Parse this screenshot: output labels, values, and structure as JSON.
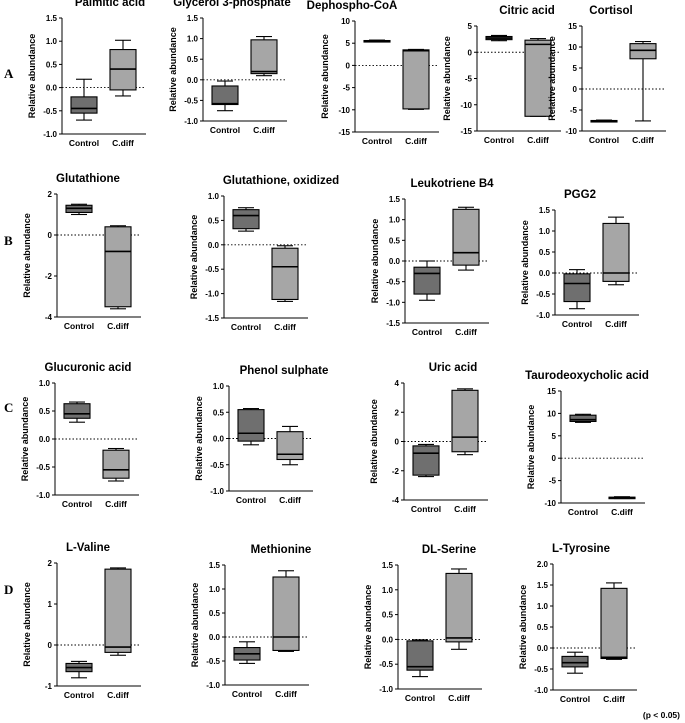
{
  "figure": {
    "ylabel": "Relative abundance",
    "footnote": "(p < 0.05)",
    "rows": [
      "A",
      "B",
      "C",
      "D"
    ]
  },
  "colors": {
    "control_box": "#6f6f6f",
    "cdiff_box": "#a6a6a6",
    "stroke": "#000000"
  },
  "chart_data": [
    {
      "type": "box",
      "row": "A",
      "title": "Palmitic acid",
      "categories": [
        "Control",
        "C.diff"
      ],
      "ylim": [
        -1.0,
        1.5
      ],
      "yticks": [
        -1.0,
        -0.5,
        0.0,
        0.5,
        1.0,
        1.5
      ],
      "tick_labels": [
        "-1.0",
        "-0.5",
        "0.0",
        "0.5",
        "1.0",
        "1.5"
      ],
      "boxes": [
        {
          "min": -0.7,
          "q1": -0.55,
          "median": -0.45,
          "q3": -0.2,
          "max": 0.18
        },
        {
          "min": -0.18,
          "q1": -0.05,
          "median": 0.4,
          "q3": 0.82,
          "max": 1.02
        }
      ]
    },
    {
      "type": "box",
      "row": "A",
      "title": "Glycerol 3-phosphate",
      "categories": [
        "Control",
        "C.diff"
      ],
      "ylim": [
        -1.0,
        1.5
      ],
      "yticks": [
        -1.0,
        -0.5,
        0.0,
        0.5,
        1.0,
        1.5
      ],
      "tick_labels": [
        "-1.0",
        "-0.5",
        "0.0",
        "0.5",
        "1.0",
        "1.5"
      ],
      "boxes": [
        {
          "min": -0.75,
          "q1": -0.6,
          "median": -0.58,
          "q3": -0.15,
          "max": -0.03
        },
        {
          "min": 0.1,
          "q1": 0.15,
          "median": 0.2,
          "q3": 0.97,
          "max": 1.05
        }
      ]
    },
    {
      "type": "box",
      "row": "A",
      "title": "Dephospho-CoA",
      "categories": [
        "Control",
        "C.diff"
      ],
      "ylim": [
        -15,
        10
      ],
      "yticks": [
        -15,
        -10,
        -5,
        0,
        5,
        10
      ],
      "tick_labels": [
        "-15",
        "-10",
        "-5",
        "0",
        "5",
        "10"
      ],
      "boxes": [
        {
          "min": 5.3,
          "q1": 5.4,
          "median": 5.5,
          "q3": 5.6,
          "max": 5.7
        },
        {
          "min": -9.9,
          "q1": -9.8,
          "median": 3.3,
          "q3": 3.5,
          "max": 3.6
        }
      ]
    },
    {
      "type": "box",
      "row": "A",
      "title": "Citric acid",
      "categories": [
        "Control",
        "C.diff"
      ],
      "ylim": [
        -15,
        5
      ],
      "yticks": [
        -15,
        -10,
        -5,
        0,
        5
      ],
      "tick_labels": [
        "-15",
        "-10",
        "-5",
        "0",
        "5"
      ],
      "boxes": [
        {
          "min": 2.2,
          "q1": 2.4,
          "median": 2.7,
          "q3": 3.0,
          "max": 3.2
        },
        {
          "min": -12.2,
          "q1": -12.2,
          "median": 1.5,
          "q3": 2.3,
          "max": 2.6
        }
      ]
    },
    {
      "type": "box",
      "row": "A",
      "title": "Cortisol",
      "categories": [
        "Control",
        "C.diff"
      ],
      "ylim": [
        -10,
        15
      ],
      "yticks": [
        -10,
        -5,
        0,
        5,
        10,
        15
      ],
      "tick_labels": [
        "-10",
        "-5",
        "0",
        "5",
        "10",
        "15"
      ],
      "boxes": [
        {
          "min": -7.8,
          "q1": -7.7,
          "median": -7.6,
          "q3": -7.5,
          "max": -7.4
        },
        {
          "min": -7.6,
          "q1": 7.2,
          "median": 9.2,
          "q3": 10.8,
          "max": 11.3
        }
      ]
    },
    {
      "type": "box",
      "row": "B",
      "title": "Glutathione",
      "categories": [
        "Control",
        "C.diff"
      ],
      "ylim": [
        -4,
        2
      ],
      "yticks": [
        -4,
        -2,
        0,
        2
      ],
      "tick_labels": [
        "-4",
        "-2",
        "0",
        "2"
      ],
      "boxes": [
        {
          "min": 1.0,
          "q1": 1.1,
          "median": 1.3,
          "q3": 1.45,
          "max": 1.5
        },
        {
          "min": -3.6,
          "q1": -3.5,
          "median": -0.8,
          "q3": 0.4,
          "max": 0.45
        }
      ]
    },
    {
      "type": "box",
      "row": "B",
      "title": "Glutathione, oxidized",
      "categories": [
        "Control",
        "C.diff"
      ],
      "ylim": [
        -1.5,
        1.0
      ],
      "yticks": [
        -1.5,
        -1.0,
        -0.5,
        0.0,
        0.5,
        1.0
      ],
      "tick_labels": [
        "-1.5",
        "-1.0",
        "-0.5",
        "0.0",
        "0.5",
        "1.0"
      ],
      "boxes": [
        {
          "min": 0.28,
          "q1": 0.33,
          "median": 0.6,
          "q3": 0.72,
          "max": 0.76
        },
        {
          "min": -1.16,
          "q1": -1.12,
          "median": -0.45,
          "q3": -0.07,
          "max": -0.02
        }
      ]
    },
    {
      "type": "box",
      "row": "B",
      "title": "Leukotriene B4",
      "categories": [
        "Control",
        "C.diff"
      ],
      "ylim": [
        -1.5,
        1.5
      ],
      "yticks": [
        -1.5,
        -1.0,
        -0.5,
        0.0,
        0.5,
        1.0,
        1.5
      ],
      "tick_labels": [
        "-1.5",
        "-1.0",
        "-0.5",
        "0.0",
        "0.5",
        "1.0",
        "1.5"
      ],
      "boxes": [
        {
          "min": -0.95,
          "q1": -0.8,
          "median": -0.3,
          "q3": -0.15,
          "max": 0.0
        },
        {
          "min": -0.22,
          "q1": -0.1,
          "median": 0.2,
          "q3": 1.25,
          "max": 1.3
        }
      ]
    },
    {
      "type": "box",
      "row": "B",
      "title": "PGG2",
      "categories": [
        "Control",
        "C.diff"
      ],
      "ylim": [
        -1.0,
        1.5
      ],
      "yticks": [
        -1.0,
        -0.5,
        0.0,
        0.5,
        1.0,
        1.5
      ],
      "tick_labels": [
        "-1.0",
        "-0.5",
        "0.0",
        "0.5",
        "1.0",
        "1.5"
      ],
      "boxes": [
        {
          "min": -0.85,
          "q1": -0.68,
          "median": -0.25,
          "q3": -0.02,
          "max": 0.08
        },
        {
          "min": -0.28,
          "q1": -0.2,
          "median": 0.0,
          "q3": 1.18,
          "max": 1.33
        }
      ]
    },
    {
      "type": "box",
      "row": "C",
      "title": "Glucuronic acid",
      "categories": [
        "Control",
        "C.diff"
      ],
      "ylim": [
        -1.0,
        1.0
      ],
      "yticks": [
        -1.0,
        -0.5,
        0.0,
        0.5,
        1.0
      ],
      "tick_labels": [
        "-1.0",
        "-0.5",
        "0.0",
        "0.5",
        "1.0"
      ],
      "boxes": [
        {
          "min": 0.3,
          "q1": 0.37,
          "median": 0.45,
          "q3": 0.63,
          "max": 0.66
        },
        {
          "min": -0.75,
          "q1": -0.7,
          "median": -0.55,
          "q3": -0.2,
          "max": -0.17
        }
      ]
    },
    {
      "type": "box",
      "row": "C",
      "title": "Phenol sulphate",
      "categories": [
        "Control",
        "C.diff"
      ],
      "ylim": [
        -1.0,
        1.0
      ],
      "yticks": [
        -1.0,
        -0.5,
        0.0,
        0.5,
        1.0
      ],
      "tick_labels": [
        "-1.0",
        "-0.5",
        "0.0",
        "0.5",
        "1.0"
      ],
      "boxes": [
        {
          "min": -0.12,
          "q1": -0.05,
          "median": 0.1,
          "q3": 0.55,
          "max": 0.57
        },
        {
          "min": -0.5,
          "q1": -0.4,
          "median": -0.3,
          "q3": 0.13,
          "max": 0.23
        }
      ]
    },
    {
      "type": "box",
      "row": "C",
      "title": "Uric acid",
      "categories": [
        "Control",
        "C.diff"
      ],
      "ylim": [
        -4,
        4
      ],
      "yticks": [
        -4,
        -2,
        0,
        2,
        4
      ],
      "tick_labels": [
        "-4",
        "-2",
        "0",
        "2",
        "4"
      ],
      "boxes": [
        {
          "min": -2.4,
          "q1": -2.3,
          "median": -0.8,
          "q3": -0.3,
          "max": -0.2
        },
        {
          "min": -0.9,
          "q1": -0.7,
          "median": 0.3,
          "q3": 3.5,
          "max": 3.6
        }
      ]
    },
    {
      "type": "box",
      "row": "C",
      "title": "Taurodeoxycholic acid",
      "categories": [
        "Control",
        "C.diff"
      ],
      "ylim": [
        -10,
        15
      ],
      "yticks": [
        -10,
        -5,
        0,
        5,
        10,
        15
      ],
      "tick_labels": [
        "-10",
        "-5",
        "0",
        "5",
        "10",
        "15"
      ],
      "boxes": [
        {
          "min": 8.0,
          "q1": 8.2,
          "median": 8.6,
          "q3": 9.6,
          "max": 9.8
        },
        {
          "min": -9.0,
          "q1": -8.9,
          "median": -8.8,
          "q3": -8.7,
          "max": -8.6
        }
      ]
    },
    {
      "type": "box",
      "row": "D",
      "title": "L-Valine",
      "categories": [
        "Control",
        "C.diff"
      ],
      "ylim": [
        -1,
        2
      ],
      "yticks": [
        -1,
        0,
        1,
        2
      ],
      "tick_labels": [
        "-1",
        "0",
        "1",
        "2"
      ],
      "boxes": [
        {
          "min": -0.8,
          "q1": -0.65,
          "median": -0.55,
          "q3": -0.45,
          "max": -0.4
        },
        {
          "min": -0.25,
          "q1": -0.18,
          "median": -0.05,
          "q3": 1.85,
          "max": 1.88
        }
      ]
    },
    {
      "type": "box",
      "row": "D",
      "title": "Methionine",
      "categories": [
        "Control",
        "C.diff"
      ],
      "ylim": [
        -1.0,
        1.5
      ],
      "yticks": [
        -1.0,
        -0.5,
        0.0,
        0.5,
        1.0,
        1.5
      ],
      "tick_labels": [
        "-1.0",
        "-0.5",
        "0.0",
        "0.5",
        "1.0",
        "1.5"
      ],
      "boxes": [
        {
          "min": -0.55,
          "q1": -0.48,
          "median": -0.35,
          "q3": -0.22,
          "max": -0.1
        },
        {
          "min": -0.3,
          "q1": -0.28,
          "median": 0.0,
          "q3": 1.25,
          "max": 1.38
        }
      ]
    },
    {
      "type": "box",
      "row": "D",
      "title": "DL-Serine",
      "categories": [
        "Control",
        "C.diff"
      ],
      "ylim": [
        -1.0,
        1.5
      ],
      "yticks": [
        -1.0,
        -0.5,
        0.0,
        0.5,
        1.0,
        1.5
      ],
      "tick_labels": [
        "-1.0",
        "-0.5",
        "0.0",
        "0.5",
        "1.0",
        "1.5"
      ],
      "boxes": [
        {
          "min": -0.75,
          "q1": -0.62,
          "median": -0.55,
          "q3": -0.03,
          "max": -0.01
        },
        {
          "min": -0.2,
          "q1": -0.05,
          "median": 0.03,
          "q3": 1.33,
          "max": 1.42
        }
      ]
    },
    {
      "type": "box",
      "row": "D",
      "title": "L-Tyrosine",
      "categories": [
        "Control",
        "C.diff"
      ],
      "ylim": [
        -1.0,
        2.0
      ],
      "yticks": [
        -1.0,
        -0.5,
        0.0,
        0.5,
        1.0,
        1.5,
        2.0
      ],
      "tick_labels": [
        "-1.0",
        "-0.5",
        "0.0",
        "0.5",
        "1.0",
        "1.5",
        "2.0"
      ],
      "boxes": [
        {
          "min": -0.6,
          "q1": -0.45,
          "median": -0.35,
          "q3": -0.2,
          "max": -0.1
        },
        {
          "min": -0.27,
          "q1": -0.25,
          "median": -0.22,
          "q3": 1.42,
          "max": 1.55
        }
      ]
    }
  ]
}
